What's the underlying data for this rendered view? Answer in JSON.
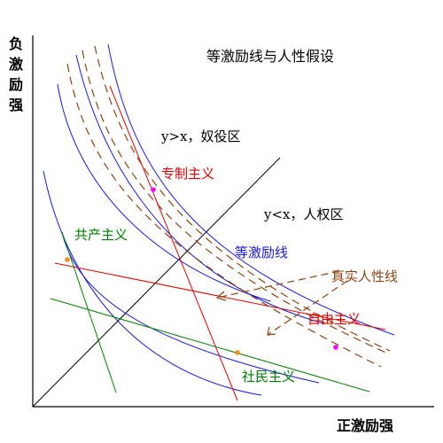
{
  "title": "等激励线与人性假设",
  "axes": {
    "y_label": [
      "负",
      "激",
      "励",
      "强"
    ],
    "x_label": "正激励强"
  },
  "regions": {
    "upper": "y>x，奴役区",
    "lower": "y<x，人权区"
  },
  "labels": {
    "despotism": "专制主义",
    "communism": "共产主义",
    "iso_line": "等激励线",
    "true_nature": "真实人性线",
    "liberalism": "自由主义",
    "social_democracy": "社民主义"
  },
  "colors": {
    "axis": "#000000",
    "iso_curve": "#1a1adc",
    "true_nature": "#8b4513",
    "despotism": "#e00000",
    "liberalism": "#e00000",
    "communism": "#008000",
    "social_democracy": "#008000",
    "point_orange": "#ff8c1a",
    "point_magenta": "#ff00ff"
  }
}
